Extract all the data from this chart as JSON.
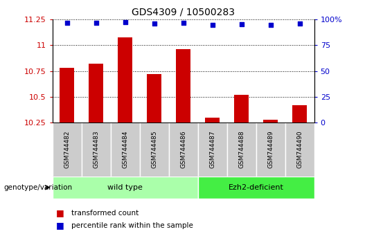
{
  "title": "GDS4309 / 10500283",
  "samples": [
    "GSM744482",
    "GSM744483",
    "GSM744484",
    "GSM744485",
    "GSM744486",
    "GSM744487",
    "GSM744488",
    "GSM744489",
    "GSM744490"
  ],
  "transformed_counts": [
    10.78,
    10.82,
    11.08,
    10.72,
    10.96,
    10.3,
    10.52,
    10.28,
    10.42
  ],
  "percentile_ranks": [
    97,
    97,
    97.5,
    96.5,
    97,
    95,
    95.5,
    95,
    96
  ],
  "ylim_left": [
    10.25,
    11.25
  ],
  "ylim_right": [
    0,
    100
  ],
  "yticks_left": [
    10.25,
    10.5,
    10.75,
    11.0,
    11.25
  ],
  "yticks_right": [
    0,
    25,
    50,
    75,
    100
  ],
  "ytick_labels_left": [
    "10.25",
    "10.5",
    "10.75",
    "11",
    "11.25"
  ],
  "ytick_labels_right": [
    "0",
    "25",
    "50",
    "75",
    "100%"
  ],
  "groups": [
    {
      "label": "wild type",
      "n_samples": 5,
      "color": "#aaffaa"
    },
    {
      "label": "Ezh2-deficient",
      "n_samples": 4,
      "color": "#44ee44"
    }
  ],
  "bar_color": "#CC0000",
  "dot_color": "#0000CC",
  "bar_width": 0.5,
  "ylabel_left_color": "#CC0000",
  "ylabel_right_color": "#0000CC",
  "group_label": "genotype/variation",
  "legend_items": [
    {
      "label": "transformed count",
      "color": "#CC0000"
    },
    {
      "label": "percentile rank within the sample",
      "color": "#0000CC"
    }
  ],
  "xtick_box_color": "#cccccc",
  "dotted_line_values": [
    10.5,
    10.75,
    11.0,
    11.25
  ],
  "grid_linestyle": "dotted"
}
